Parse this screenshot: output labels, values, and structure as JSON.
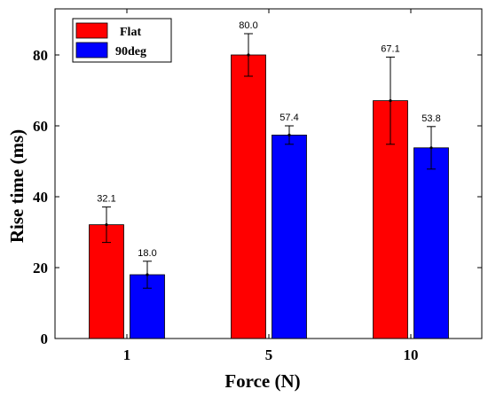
{
  "chart_data": {
    "type": "bar",
    "categories": [
      "1",
      "5",
      "10"
    ],
    "series": [
      {
        "name": "Flat",
        "color": "#ff0000",
        "values": [
          32.1,
          80.0,
          67.1
        ],
        "error": [
          5,
          6,
          12.3
        ],
        "value_labels": [
          "32.1",
          "80.0",
          "67.1"
        ]
      },
      {
        "name": "90deg",
        "color": "#0000ff",
        "values": [
          18.0,
          57.4,
          53.8
        ],
        "error": [
          3.8,
          2.6,
          6.0
        ],
        "value_labels": [
          "18.0",
          "57.4",
          "53.8"
        ]
      }
    ],
    "xlabel": "Force (N)",
    "ylabel": "Rise time (ms)",
    "ylim": [
      0,
      93
    ],
    "yticks": [
      0,
      20,
      40,
      60,
      80
    ],
    "grid": false,
    "legend_position": "top-left"
  }
}
